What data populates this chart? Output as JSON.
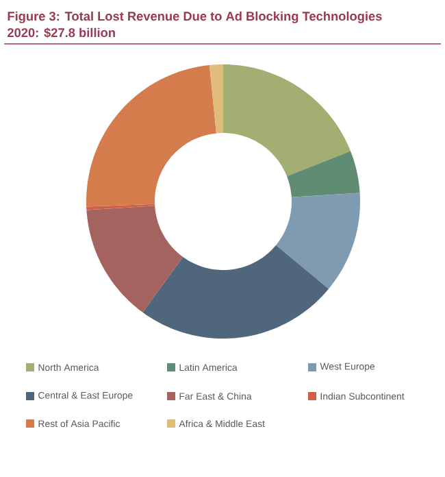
{
  "chart_data": {
    "type": "donut",
    "title": "Figure 3: Total Lost Revenue Due to Ad Blocking Technologies",
    "subtitle": "2020: $27.8 billion",
    "categories": [
      "North America",
      "Latin America",
      "West Europe",
      "Central & East Europe",
      "Far East & China",
      "Indian Subcontinent",
      "Rest of Asia Pacific",
      "Africa & Middle East"
    ],
    "values": [
      19,
      5,
      12,
      24,
      14,
      0.4,
      24,
      1.6
    ],
    "colors": [
      "#a3ae72",
      "#5f8c73",
      "#7f9bb2",
      "#50667d",
      "#a5635f",
      "#d0604a",
      "#d47c4c",
      "#e0bb7a"
    ],
    "legend": "bottom"
  }
}
